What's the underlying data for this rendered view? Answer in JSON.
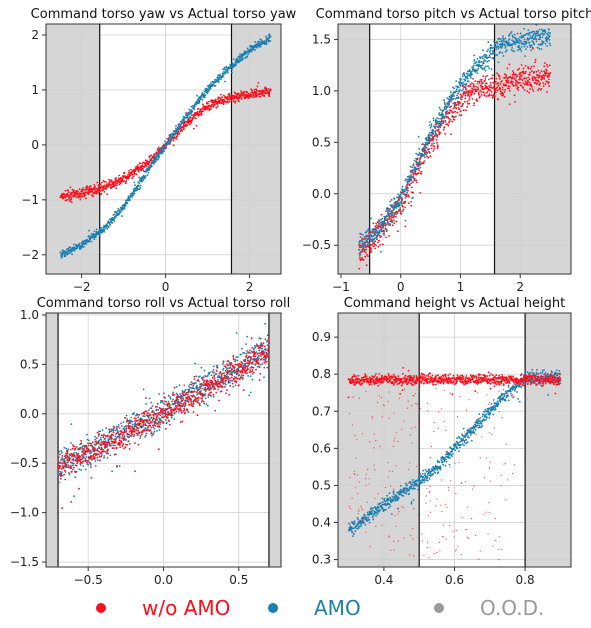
{
  "colors": {
    "wo_amo": "#ff0d1a",
    "amo": "#1a7fb0",
    "ood": "#999999",
    "ood_band": "#d6d6d6",
    "grid": "#d0d0d0"
  },
  "legend": [
    {
      "label": "w/o AMO",
      "color": "#ff0d1a"
    },
    {
      "label": "AMO",
      "color": "#1a7fb0"
    },
    {
      "label": "O.O.D.",
      "color": "#999999"
    }
  ],
  "chart_data": [
    {
      "type": "scatter",
      "title": "Command torso yaw vs Actual torso yaw",
      "xlabel": "",
      "ylabel": "",
      "xlim": [
        -2.85,
        2.75
      ],
      "ylim": [
        -2.35,
        2.2
      ],
      "xticks": [
        -2,
        0,
        2
      ],
      "yticks": [
        -2,
        -1,
        0,
        1,
        2
      ],
      "xtick_labels": [
        "−2",
        "0",
        "2"
      ],
      "ytick_labels": [
        "−2",
        "−1",
        "0",
        "1",
        "2"
      ],
      "ood_regions": [
        [
          -2.85,
          -1.57
        ],
        [
          1.57,
          2.75
        ]
      ],
      "grid": true,
      "series": [
        {
          "name": "w/o AMO",
          "color": "#ff0d1a",
          "noise": 0.06,
          "x": [
            -2.5,
            -2.0,
            -1.5,
            -1.0,
            -0.5,
            0.0,
            0.5,
            1.0,
            1.5,
            2.0,
            2.5
          ],
          "y": [
            -0.95,
            -0.88,
            -0.78,
            -0.62,
            -0.38,
            0.0,
            0.4,
            0.72,
            0.85,
            0.92,
            0.98
          ]
        },
        {
          "name": "AMO",
          "color": "#1a7fb0",
          "noise": 0.05,
          "x": [
            -2.5,
            -2.0,
            -1.5,
            -1.0,
            -0.5,
            0.0,
            0.5,
            1.0,
            1.5,
            2.0,
            2.5
          ],
          "y": [
            -2.0,
            -1.82,
            -1.55,
            -1.12,
            -0.55,
            0.0,
            0.52,
            1.0,
            1.4,
            1.72,
            1.95
          ]
        }
      ]
    },
    {
      "type": "scatter",
      "title": "Command torso pitch vs Actual torso pitch",
      "xlabel": "",
      "ylabel": "",
      "xlim": [
        -1.05,
        2.85
      ],
      "ylim": [
        -0.78,
        1.65
      ],
      "xticks": [
        -1,
        0,
        1,
        2
      ],
      "yticks": [
        -0.5,
        0.0,
        0.5,
        1.0,
        1.5
      ],
      "xtick_labels": [
        "−1",
        "0",
        "1",
        "2"
      ],
      "ytick_labels": [
        "−0.5",
        "0.0",
        "0.5",
        "1.0",
        "1.5"
      ],
      "ood_regions": [
        [
          -1.05,
          -0.52
        ],
        [
          1.57,
          2.85
        ]
      ],
      "grid": true,
      "series": [
        {
          "name": "w/o AMO",
          "color": "#ff0d1a",
          "noise": 0.09,
          "x": [
            -0.7,
            -0.4,
            0.0,
            0.4,
            0.8,
            1.2,
            1.6,
            2.0,
            2.5
          ],
          "y": [
            -0.58,
            -0.4,
            -0.1,
            0.4,
            0.8,
            1.0,
            1.05,
            1.1,
            1.15
          ]
        },
        {
          "name": "AMO",
          "color": "#1a7fb0",
          "noise": 0.07,
          "x": [
            -0.7,
            -0.4,
            0.0,
            0.4,
            0.8,
            1.2,
            1.6,
            2.0,
            2.5
          ],
          "y": [
            -0.5,
            -0.38,
            -0.05,
            0.45,
            0.88,
            1.2,
            1.42,
            1.5,
            1.52
          ]
        }
      ]
    },
    {
      "type": "scatter",
      "title": "Command torso roll vs Actual torso roll",
      "xlabel": "",
      "ylabel": "",
      "xlim": [
        -0.78,
        0.78
      ],
      "ylim": [
        -1.55,
        1.02
      ],
      "xticks": [
        -0.5,
        0.0,
        0.5
      ],
      "yticks": [
        -1.5,
        -1.0,
        -0.5,
        0.0,
        0.5,
        1.0
      ],
      "xtick_labels": [
        "−0.5",
        "0.0",
        "0.5"
      ],
      "ytick_labels": [
        "−1.5",
        "−1.0",
        "−0.5",
        "0.0",
        "0.5",
        "1.0"
      ],
      "ood_regions": [
        [
          -0.78,
          -0.7
        ],
        [
          0.7,
          0.78
        ]
      ],
      "grid": true,
      "series": [
        {
          "name": "AMO",
          "color": "#1a7fb0",
          "noise": 0.11,
          "x": [
            -0.7,
            -0.5,
            -0.3,
            -0.1,
            0.1,
            0.3,
            0.5,
            0.7
          ],
          "y": [
            -0.52,
            -0.38,
            -0.22,
            -0.05,
            0.12,
            0.3,
            0.48,
            0.65
          ]
        },
        {
          "name": "w/o AMO",
          "color": "#ff0d1a",
          "noise": 0.1,
          "x": [
            -0.7,
            -0.5,
            -0.3,
            -0.1,
            0.1,
            0.3,
            0.5,
            0.7
          ],
          "y": [
            -0.55,
            -0.4,
            -0.24,
            -0.08,
            0.1,
            0.27,
            0.45,
            0.62
          ]
        }
      ]
    },
    {
      "type": "scatter",
      "title": "Command height vs Actual height",
      "xlabel": "",
      "ylabel": "",
      "xlim": [
        0.27,
        0.93
      ],
      "ylim": [
        0.28,
        0.965
      ],
      "xticks": [
        0.4,
        0.6,
        0.8
      ],
      "yticks": [
        0.3,
        0.4,
        0.5,
        0.6,
        0.7,
        0.8,
        0.9
      ],
      "xtick_labels": [
        "0.4",
        "0.6",
        "0.8"
      ],
      "ytick_labels": [
        "0.3",
        "0.4",
        "0.5",
        "0.6",
        "0.7",
        "0.8",
        "0.9"
      ],
      "ood_regions": [
        [
          0.27,
          0.5
        ],
        [
          0.8,
          0.93
        ]
      ],
      "grid": true,
      "series": [
        {
          "name": "AMO",
          "color": "#1a7fb0",
          "noise": 0.012,
          "x": [
            0.3,
            0.35,
            0.4,
            0.45,
            0.5,
            0.55,
            0.6,
            0.65,
            0.7,
            0.75,
            0.8,
            0.85,
            0.9
          ],
          "y": [
            0.38,
            0.41,
            0.45,
            0.48,
            0.51,
            0.55,
            0.6,
            0.65,
            0.7,
            0.75,
            0.79,
            0.79,
            0.79
          ]
        },
        {
          "name": "w/o AMO",
          "color": "#ff0d1a",
          "noise": 0.01,
          "x": [
            0.3,
            0.4,
            0.5,
            0.6,
            0.7,
            0.8,
            0.9
          ],
          "y": [
            0.785,
            0.785,
            0.785,
            0.785,
            0.785,
            0.785,
            0.785
          ]
        }
      ]
    }
  ]
}
